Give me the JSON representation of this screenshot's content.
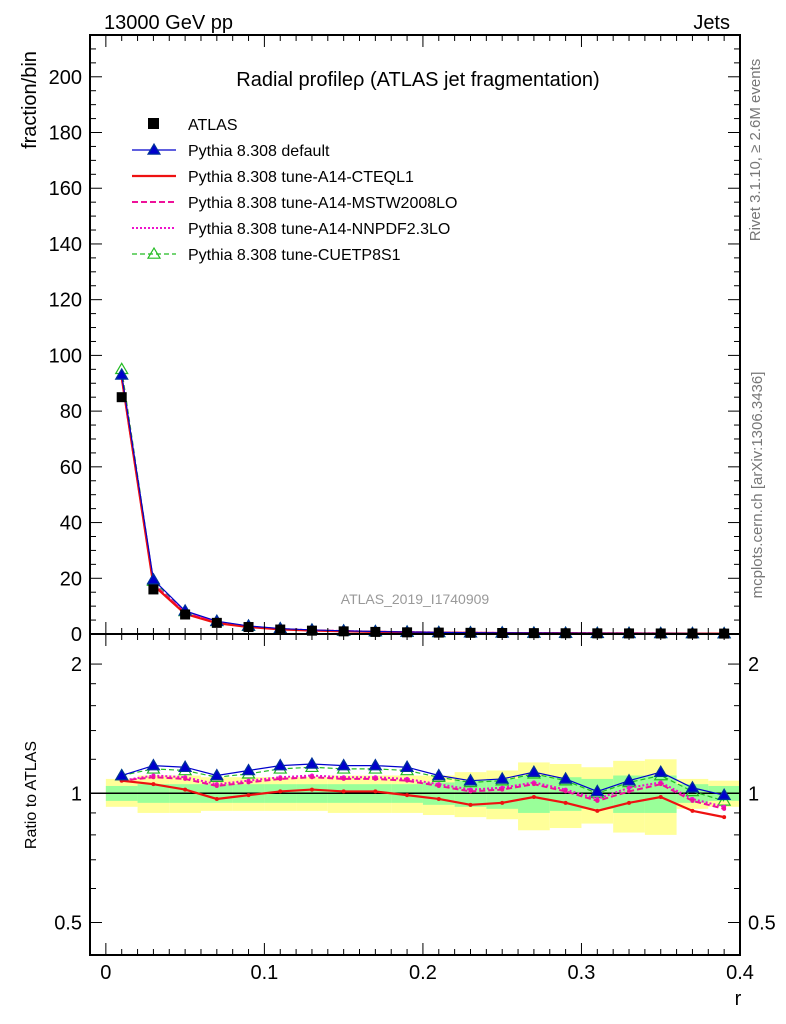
{
  "header": {
    "left": "13000 GeV pp",
    "right": "Jets"
  },
  "side_labels": {
    "rivet": "Rivet 3.1.10, ≥ 2.6M events",
    "mcplots": "mcplots.cern.ch [arXiv:1306.3436]"
  },
  "watermark": "ATLAS_2019_I1740909",
  "colors": {
    "atlas": "#000000",
    "default": "#0000cc",
    "cteql1": "#ee1111",
    "mstw": "#ee1199",
    "nnpdf": "#ee11cc",
    "cuetp8s1": "#22bb22",
    "band_outer": "#ffff99",
    "band_inner": "#99ff99"
  },
  "chart_data": [
    {
      "type": "line",
      "title": "Radial profileρ (ATLAS jet fragmentation)",
      "ylabel": "fraction/bin",
      "xlim": [
        -0.01,
        0.4
      ],
      "ylim": [
        0,
        215
      ],
      "yticks": [
        "0",
        "20",
        "40",
        "60",
        "80",
        "100",
        "120",
        "140",
        "160",
        "180",
        "200"
      ],
      "x": [
        0.01,
        0.03,
        0.05,
        0.07,
        0.09,
        0.11,
        0.13,
        0.15,
        0.17,
        0.19,
        0.21,
        0.23,
        0.25,
        0.27,
        0.29,
        0.31,
        0.33,
        0.35,
        0.37,
        0.39
      ],
      "legend": [
        {
          "label": "ATLAS",
          "key": "atlas",
          "style": "square"
        },
        {
          "label": "Pythia 8.308 default",
          "key": "default",
          "style": "solid-tri"
        },
        {
          "label": "Pythia 8.308 tune-A14-CTEQL1",
          "key": "cteql1",
          "style": "solid"
        },
        {
          "label": "Pythia 8.308 tune-A14-MSTW2008LO",
          "key": "mstw",
          "style": "dashed"
        },
        {
          "label": "Pythia 8.308 tune-A14-NNPDF2.3LO",
          "key": "nnpdf",
          "style": "dotted"
        },
        {
          "label": "Pythia 8.308 tune-CUETP8S1",
          "key": "cuetp8s1",
          "style": "dashed-tri"
        }
      ],
      "series": [
        {
          "name": "ATLAS",
          "key": "atlas",
          "values": [
            85,
            16,
            7,
            4,
            2.5,
            1.6,
            1.2,
            0.95,
            0.75,
            0.6,
            0.5,
            0.42,
            0.36,
            0.31,
            0.27,
            0.24,
            0.21,
            0.19,
            0.17,
            0.15
          ]
        },
        {
          "name": "Pythia 8.308 default",
          "key": "default",
          "values": [
            93,
            19.5,
            8.3,
            4.6,
            2.9,
            1.95,
            1.45,
            1.15,
            0.9,
            0.72,
            0.58,
            0.48,
            0.41,
            0.36,
            0.31,
            0.27,
            0.24,
            0.22,
            0.19,
            0.16
          ]
        },
        {
          "name": "Pythia 8.308 tune-A14-CTEQL1",
          "key": "cteql1",
          "values": [
            92,
            17.5,
            7.2,
            3.9,
            2.5,
            1.65,
            1.23,
            0.96,
            0.76,
            0.6,
            0.48,
            0.4,
            0.34,
            0.3,
            0.26,
            0.22,
            0.2,
            0.18,
            0.16,
            0.13
          ]
        },
        {
          "name": "Pythia 8.308 tune-A14-MSTW2008LO",
          "key": "mstw",
          "values": [
            92,
            18,
            7.6,
            4.2,
            2.65,
            1.75,
            1.32,
            1.03,
            0.82,
            0.65,
            0.52,
            0.43,
            0.37,
            0.32,
            0.28,
            0.24,
            0.21,
            0.19,
            0.17,
            0.14
          ]
        },
        {
          "name": "Pythia 8.308 tune-A14-NNPDF2.3LO",
          "key": "nnpdf",
          "values": [
            92,
            18,
            7.7,
            4.2,
            2.7,
            1.78,
            1.34,
            1.05,
            0.83,
            0.66,
            0.53,
            0.44,
            0.38,
            0.33,
            0.28,
            0.24,
            0.22,
            0.2,
            0.17,
            0.14
          ]
        },
        {
          "name": "Pythia 8.308 tune-CUETP8S1",
          "key": "cuetp8s1",
          "values": [
            95,
            19,
            8.1,
            4.5,
            2.8,
            1.9,
            1.4,
            1.1,
            0.87,
            0.7,
            0.56,
            0.46,
            0.4,
            0.35,
            0.3,
            0.26,
            0.23,
            0.21,
            0.18,
            0.15
          ]
        }
      ]
    },
    {
      "type": "line",
      "ylabel": "Ratio to ATLAS",
      "xlabel": "r",
      "scale": "log",
      "ylim": [
        0.42,
        2.35
      ],
      "yticks": [
        {
          "v": 0.5,
          "label": "0.5"
        },
        {
          "v": 1,
          "label": "1"
        },
        {
          "v": 2,
          "label": "2"
        }
      ],
      "xticks": [
        {
          "v": 0,
          "label": "0"
        },
        {
          "v": 0.1,
          "label": "0.1"
        },
        {
          "v": 0.2,
          "label": "0.2"
        },
        {
          "v": 0.3,
          "label": "0.3"
        },
        {
          "v": 0.4,
          "label": "0.4"
        }
      ],
      "band_outer": {
        "lo": [
          0.93,
          0.9,
          0.9,
          0.91,
          0.91,
          0.91,
          0.91,
          0.9,
          0.9,
          0.9,
          0.89,
          0.88,
          0.87,
          0.82,
          0.83,
          0.85,
          0.81,
          0.8,
          0.92,
          0.93
        ],
        "hi": [
          1.08,
          1.1,
          1.1,
          1.09,
          1.09,
          1.09,
          1.09,
          1.1,
          1.1,
          1.1,
          1.1,
          1.12,
          1.13,
          1.18,
          1.17,
          1.15,
          1.19,
          1.2,
          1.08,
          1.07
        ]
      },
      "band_inner": {
        "lo": [
          0.96,
          0.95,
          0.95,
          0.95,
          0.95,
          0.95,
          0.95,
          0.95,
          0.95,
          0.95,
          0.94,
          0.93,
          0.92,
          0.9,
          0.91,
          0.92,
          0.9,
          0.9,
          0.95,
          0.96
        ],
        "hi": [
          1.04,
          1.05,
          1.05,
          1.05,
          1.05,
          1.05,
          1.05,
          1.05,
          1.05,
          1.05,
          1.06,
          1.07,
          1.08,
          1.1,
          1.09,
          1.08,
          1.1,
          1.1,
          1.05,
          1.04
        ]
      },
      "series": [
        {
          "name": "Pythia 8.308 default",
          "key": "default",
          "values": [
            1.1,
            1.16,
            1.15,
            1.1,
            1.13,
            1.16,
            1.17,
            1.16,
            1.16,
            1.15,
            1.1,
            1.07,
            1.08,
            1.12,
            1.08,
            1.01,
            1.07,
            1.12,
            1.03,
            0.99
          ]
        },
        {
          "name": "Pythia 8.308 tune-A14-CTEQL1",
          "key": "cteql1",
          "values": [
            1.07,
            1.05,
            1.02,
            0.97,
            0.99,
            1.01,
            1.02,
            1.01,
            1.01,
            0.99,
            0.97,
            0.94,
            0.95,
            0.98,
            0.95,
            0.91,
            0.95,
            0.98,
            0.91,
            0.88
          ]
        },
        {
          "name": "Pythia 8.308 tune-A14-MSTW2008LO",
          "key": "mstw",
          "values": [
            1.07,
            1.09,
            1.08,
            1.04,
            1.06,
            1.08,
            1.09,
            1.08,
            1.08,
            1.07,
            1.04,
            1.01,
            1.02,
            1.05,
            1.01,
            0.96,
            1.01,
            1.05,
            0.96,
            0.92
          ]
        },
        {
          "name": "Pythia 8.308 tune-A14-NNPDF2.3LO",
          "key": "nnpdf",
          "values": [
            1.07,
            1.1,
            1.09,
            1.05,
            1.07,
            1.09,
            1.1,
            1.09,
            1.09,
            1.08,
            1.05,
            1.02,
            1.03,
            1.06,
            1.02,
            0.97,
            1.03,
            1.06,
            0.97,
            0.93
          ]
        },
        {
          "name": "Pythia 8.308 tune-CUETP8S1",
          "key": "cuetp8s1",
          "values": [
            1.1,
            1.14,
            1.13,
            1.09,
            1.11,
            1.14,
            1.15,
            1.14,
            1.14,
            1.13,
            1.09,
            1.06,
            1.07,
            1.11,
            1.07,
            1.0,
            1.06,
            1.1,
            1.01,
            0.96
          ]
        }
      ]
    }
  ]
}
